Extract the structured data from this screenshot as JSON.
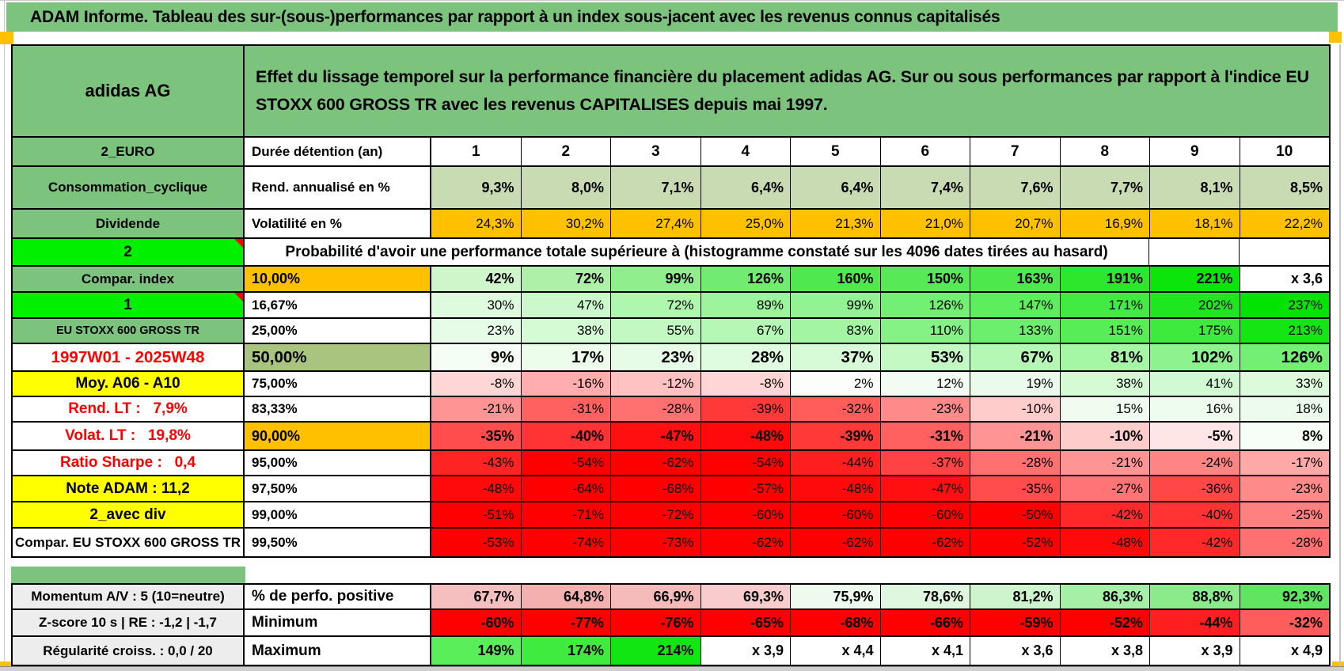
{
  "title": "ADAM Informe. Tableau des sur-(sous-)performances par rapport à un index sous-jacent avec les revenus connus capitalisés",
  "colors": {
    "band_green": "#7CC47D",
    "bright_green": "#00F000",
    "orange": "#FFC000",
    "yellow": "#FFFF00",
    "sage": "#C9DBB3",
    "olive": "#A9C47E",
    "gray_label": "#EDEDED",
    "red_text": "#FF0000",
    "marker_orange": "#FFC000"
  },
  "header": {
    "company": "adidas AG",
    "description": "Effet du lissage temporel sur la performance financière du placement adidas AG. Sur ou sous performances par rapport à l'indice EU STOXX 600 GROSS TR avec les revenus CAPITALISES depuis mai 1997."
  },
  "columns": [
    "1",
    "2",
    "3",
    "4",
    "5",
    "6",
    "7",
    "8",
    "9",
    "10"
  ],
  "rows": [
    {
      "a": "2_EURO",
      "a_class": "bg-green",
      "b": "Durée détention (an)",
      "b_class": "",
      "v_class": "ac bold fs19",
      "cells": [
        {
          "t": "1",
          "bg": "#FFFFFF"
        },
        {
          "t": "2",
          "bg": "#FFFFFF"
        },
        {
          "t": "3",
          "bg": "#FFFFFF"
        },
        {
          "t": "4",
          "bg": "#FFFFFF"
        },
        {
          "t": "5",
          "bg": "#FFFFFF"
        },
        {
          "t": "6",
          "bg": "#FFFFFF"
        },
        {
          "t": "7",
          "bg": "#FFFFFF"
        },
        {
          "t": "8",
          "bg": "#FFFFFF"
        },
        {
          "t": "9",
          "bg": "#FFFFFF"
        },
        {
          "t": "10",
          "bg": "#FFFFFF"
        }
      ]
    },
    {
      "a": "Consommation_cyclique",
      "a_class": "bg-green",
      "b": "Rend. annualisé en %",
      "b_class": "",
      "v_class": "bold fs18",
      "cells": [
        {
          "t": "9,3%",
          "bg": "#C9DBB3"
        },
        {
          "t": "8,0%",
          "bg": "#C9DBB3"
        },
        {
          "t": "7,1%",
          "bg": "#C9DBB3"
        },
        {
          "t": "6,4%",
          "bg": "#C9DBB3"
        },
        {
          "t": "6,4%",
          "bg": "#C9DBB3"
        },
        {
          "t": "7,4%",
          "bg": "#C9DBB3"
        },
        {
          "t": "7,6%",
          "bg": "#C9DBB3"
        },
        {
          "t": "7,7%",
          "bg": "#C9DBB3"
        },
        {
          "t": "8,1%",
          "bg": "#C9DBB3"
        },
        {
          "t": "8,5%",
          "bg": "#C9DBB3"
        }
      ]
    },
    {
      "a": "Dividende",
      "a_class": "bg-green",
      "b": "Volatilité en %",
      "b_class": "",
      "v_class": "normal",
      "cells": [
        {
          "t": "24,3%",
          "bg": "#FFC000"
        },
        {
          "t": "30,2%",
          "bg": "#FFC000"
        },
        {
          "t": "27,4%",
          "bg": "#FFC000"
        },
        {
          "t": "25,0%",
          "bg": "#FFC000"
        },
        {
          "t": "21,3%",
          "bg": "#FFC000"
        },
        {
          "t": "21,0%",
          "bg": "#FFC000"
        },
        {
          "t": "20,7%",
          "bg": "#FFC000"
        },
        {
          "t": "16,9%",
          "bg": "#FFC000"
        },
        {
          "t": "18,1%",
          "bg": "#FFC000"
        },
        {
          "t": "22,2%",
          "bg": "#FFC000"
        }
      ]
    },
    {
      "a": "2",
      "a_class": "bg-bright fs19",
      "a_note": true,
      "merged_text": "Probabilité d'avoir une performance totale supérieure à (histogramme constaté sur les 4096 dates tirées au hasard)",
      "tail_cells": [
        {
          "t": "",
          "bg": "#FFFFFF"
        },
        {
          "t": "",
          "bg": "#FFFFFF"
        }
      ]
    },
    {
      "a": "Compar. index",
      "a_class": "bg-green",
      "b": "10,00%",
      "b_class": "ac bg-orange fs18",
      "v_class": "bold fs18",
      "cells": [
        {
          "t": "42%",
          "bg": "#CFF5CB"
        },
        {
          "t": "72%",
          "bg": "#AFF0A8"
        },
        {
          "t": "99%",
          "bg": "#90EE8C"
        },
        {
          "t": "126%",
          "bg": "#72EC70"
        },
        {
          "t": "160%",
          "bg": "#4FE84E"
        },
        {
          "t": "150%",
          "bg": "#58E956"
        },
        {
          "t": "163%",
          "bg": "#4DE84B"
        },
        {
          "t": "191%",
          "bg": "#2CE72C"
        },
        {
          "t": "221%",
          "bg": "#0BE50B"
        },
        {
          "t": "x 3,6",
          "bg": "#FFFFFF"
        }
      ]
    },
    {
      "a": "1",
      "a_class": "bg-bright fs19",
      "a_note": true,
      "b": "16,67%",
      "b_class": "ac",
      "v_class": "normal",
      "cells": [
        {
          "t": "30%",
          "bg": "#DEFBDE"
        },
        {
          "t": "47%",
          "bg": "#CBF9CB"
        },
        {
          "t": "72%",
          "bg": "#AFF7AF"
        },
        {
          "t": "89%",
          "bg": "#9CF59C"
        },
        {
          "t": "99%",
          "bg": "#91F391"
        },
        {
          "t": "126%",
          "bg": "#73F073"
        },
        {
          "t": "147%",
          "bg": "#5CEE5C"
        },
        {
          "t": "171%",
          "bg": "#41EB41"
        },
        {
          "t": "202%",
          "bg": "#1FE71F"
        },
        {
          "t": "237%",
          "bg": "#00E400"
        }
      ]
    },
    {
      "a": "EU STOXX 600 GROSS TR",
      "a_class": "bg-green fs14",
      "b": "25,00%",
      "b_class": "ac",
      "v_class": "normal",
      "cells": [
        {
          "t": "23%",
          "bg": "#E6FCE6"
        },
        {
          "t": "38%",
          "bg": "#D5FBD5"
        },
        {
          "t": "55%",
          "bg": "#C2F9C2"
        },
        {
          "t": "67%",
          "bg": "#B5F7B5"
        },
        {
          "t": "83%",
          "bg": "#A3F5A3"
        },
        {
          "t": "110%",
          "bg": "#85F285"
        },
        {
          "t": "133%",
          "bg": "#6CEF6C"
        },
        {
          "t": "151%",
          "bg": "#57ED57"
        },
        {
          "t": "175%",
          "bg": "#3DEA3D"
        },
        {
          "t": "213%",
          "bg": "#13E613"
        }
      ]
    },
    {
      "a": "1997W01 - 2025W48",
      "a_class": "txt-red fs20",
      "b": "50,00%",
      "b_class": "ac bg-olive fs20",
      "v_class": "bold fs20",
      "cells": [
        {
          "t": "9%",
          "bg": "#F5FEF5"
        },
        {
          "t": "17%",
          "bg": "#ECFDEC"
        },
        {
          "t": "23%",
          "bg": "#E6FCE6"
        },
        {
          "t": "28%",
          "bg": "#E0FCE0"
        },
        {
          "t": "37%",
          "bg": "#D6FBD6"
        },
        {
          "t": "53%",
          "bg": "#C4F9C4"
        },
        {
          "t": "67%",
          "bg": "#B5F7B5"
        },
        {
          "t": "81%",
          "bg": "#A5F6A5"
        },
        {
          "t": "102%",
          "bg": "#8EF38E"
        },
        {
          "t": "126%",
          "bg": "#73F073"
        }
      ]
    },
    {
      "a": "Moy. A06 - A10",
      "a_class": "bg-yellow ar fs19",
      "b": "75,00%",
      "b_class": "ac",
      "v_class": "normal",
      "cells": [
        {
          "t": "-8%",
          "bg": "#FFD6D6"
        },
        {
          "t": "-16%",
          "bg": "#FFADAD"
        },
        {
          "t": "-12%",
          "bg": "#FFC2C2"
        },
        {
          "t": "-8%",
          "bg": "#FFD6D6"
        },
        {
          "t": "2%",
          "bg": "#FBFEFB"
        },
        {
          "t": "12%",
          "bg": "#F2FCF2"
        },
        {
          "t": "19%",
          "bg": "#EBFBEB"
        },
        {
          "t": "38%",
          "bg": "#D5FBD5"
        },
        {
          "t": "41%",
          "bg": "#D2FAD2"
        },
        {
          "t": "33%",
          "bg": "#DBFBDB"
        }
      ]
    },
    {
      "a": "Rend. LT :   7,9%",
      "a_class": "txt-red ar fs19 pre",
      "b": "83,33%",
      "b_class": "ac",
      "v_class": "normal",
      "cells": [
        {
          "t": "-21%",
          "bg": "#FF9494"
        },
        {
          "t": "-31%",
          "bg": "#FF6161"
        },
        {
          "t": "-28%",
          "bg": "#FF7070"
        },
        {
          "t": "-39%",
          "bg": "#FF3838"
        },
        {
          "t": "-32%",
          "bg": "#FF5C5C"
        },
        {
          "t": "-23%",
          "bg": "#FF8A8A"
        },
        {
          "t": "-10%",
          "bg": "#FFCCCC"
        },
        {
          "t": "15%",
          "bg": "#EFFCEF"
        },
        {
          "t": "16%",
          "bg": "#EEFCEE"
        },
        {
          "t": "18%",
          "bg": "#ECFBEC"
        }
      ]
    },
    {
      "a": "Volat. LT :   19,8%",
      "a_class": "txt-red ar fs19 pre",
      "b": "90,00%",
      "b_class": "ac bg-orange fs18",
      "v_class": "bold fs18",
      "cells": [
        {
          "t": "-35%",
          "bg": "#FF4D4D"
        },
        {
          "t": "-40%",
          "bg": "#FF3333"
        },
        {
          "t": "-47%",
          "bg": "#FF0F0F"
        },
        {
          "t": "-48%",
          "bg": "#FF0A0A"
        },
        {
          "t": "-39%",
          "bg": "#FF3838"
        },
        {
          "t": "-31%",
          "bg": "#FF6161"
        },
        {
          "t": "-21%",
          "bg": "#FF9494"
        },
        {
          "t": "-10%",
          "bg": "#FFCCCC"
        },
        {
          "t": "-5%",
          "bg": "#FFE6E6"
        },
        {
          "t": "8%",
          "bg": "#F7FDF7"
        }
      ]
    },
    {
      "a": "Ratio Sharpe :   0,4",
      "a_class": "txt-red ar fs19 pre",
      "b": "95,00%",
      "b_class": "ac",
      "v_class": "normal",
      "cells": [
        {
          "t": "-43%",
          "bg": "#FF2424"
        },
        {
          "t": "-54%",
          "bg": "#FF0000"
        },
        {
          "t": "-62%",
          "bg": "#FF0000"
        },
        {
          "t": "-54%",
          "bg": "#FF0000"
        },
        {
          "t": "-44%",
          "bg": "#FF1F1F"
        },
        {
          "t": "-37%",
          "bg": "#FF4242"
        },
        {
          "t": "-28%",
          "bg": "#FF7070"
        },
        {
          "t": "-21%",
          "bg": "#FF9494"
        },
        {
          "t": "-24%",
          "bg": "#FF8585"
        },
        {
          "t": "-17%",
          "bg": "#FFA8A8"
        }
      ]
    },
    {
      "a": "Note ADAM : 11,2",
      "a_class": "bg-yellow al fs19",
      "b": "97,50%",
      "b_class": "ac",
      "v_class": "normal",
      "cells": [
        {
          "t": "-48%",
          "bg": "#FF0A0A"
        },
        {
          "t": "-64%",
          "bg": "#FF0000"
        },
        {
          "t": "-68%",
          "bg": "#FF0000"
        },
        {
          "t": "-57%",
          "bg": "#FF0000"
        },
        {
          "t": "-48%",
          "bg": "#FF0A0A"
        },
        {
          "t": "-47%",
          "bg": "#FF0F0F"
        },
        {
          "t": "-35%",
          "bg": "#FF4D4D"
        },
        {
          "t": "-27%",
          "bg": "#FF7575"
        },
        {
          "t": "-36%",
          "bg": "#FF4747"
        },
        {
          "t": "-23%",
          "bg": "#FF8A8A"
        }
      ]
    },
    {
      "a": "2_avec div",
      "a_class": "bg-yellow al fs19",
      "b": "99,00%",
      "b_class": "ac",
      "v_class": "normal",
      "cells": [
        {
          "t": "-51%",
          "bg": "#FF0000"
        },
        {
          "t": "-71%",
          "bg": "#FF0000"
        },
        {
          "t": "-72%",
          "bg": "#FF0000"
        },
        {
          "t": "-60%",
          "bg": "#FF0000"
        },
        {
          "t": "-60%",
          "bg": "#FF0000"
        },
        {
          "t": "-60%",
          "bg": "#FF0000"
        },
        {
          "t": "-50%",
          "bg": "#FF0000"
        },
        {
          "t": "-42%",
          "bg": "#FF2929"
        },
        {
          "t": "-40%",
          "bg": "#FF3333"
        },
        {
          "t": "-25%",
          "bg": "#FF8080"
        }
      ]
    },
    {
      "a": "Compar. EU STOXX 600 GROSS TR",
      "a_class": "clip",
      "b": "99,50%",
      "b_class": "ac",
      "v_class": "normal",
      "cells": [
        {
          "t": "-53%",
          "bg": "#FF0000"
        },
        {
          "t": "-74%",
          "bg": "#FF0000"
        },
        {
          "t": "-73%",
          "bg": "#FF0000"
        },
        {
          "t": "-62%",
          "bg": "#FF0000"
        },
        {
          "t": "-62%",
          "bg": "#FF0000"
        },
        {
          "t": "-62%",
          "bg": "#FF0000"
        },
        {
          "t": "-52%",
          "bg": "#FF0000"
        },
        {
          "t": "-48%",
          "bg": "#FF0A0A"
        },
        {
          "t": "-42%",
          "bg": "#FF2929"
        },
        {
          "t": "-28%",
          "bg": "#FF7070"
        }
      ]
    }
  ],
  "bottom_rows": [
    {
      "a": "Momentum A/V : 5 (10=neutre)",
      "a_class": "bg-gray al",
      "b": "% de perfo. positive",
      "b_class": "fs19",
      "v_class": "bold fs18",
      "cells": [
        {
          "t": "67,7%",
          "bg": "#F6BFBF"
        },
        {
          "t": "64,8%",
          "bg": "#F4AFAF"
        },
        {
          "t": "66,9%",
          "bg": "#F5BABA"
        },
        {
          "t": "69,3%",
          "bg": "#F8CCCC"
        },
        {
          "t": "75,9%",
          "bg": "#EFFAEF"
        },
        {
          "t": "78,6%",
          "bg": "#DFF7DF"
        },
        {
          "t": "81,2%",
          "bg": "#CDF4CD"
        },
        {
          "t": "86,3%",
          "bg": "#A6EFA6"
        },
        {
          "t": "88,8%",
          "bg": "#8BEB8B"
        },
        {
          "t": "92,3%",
          "bg": "#5FE55F"
        }
      ]
    },
    {
      "a": "Z-score 10 s | RE : -1,2 | -1,7",
      "a_class": "bg-gray al pre",
      "b": "Minimum",
      "b_class": "fs19",
      "v_class": "bold fs18",
      "cells": [
        {
          "t": "-60%",
          "bg": "#FF0000"
        },
        {
          "t": "-77%",
          "bg": "#FF0000"
        },
        {
          "t": "-76%",
          "bg": "#FF0000"
        },
        {
          "t": "-65%",
          "bg": "#FF0000"
        },
        {
          "t": "-68%",
          "bg": "#FF0000"
        },
        {
          "t": "-66%",
          "bg": "#FF0000"
        },
        {
          "t": "-59%",
          "bg": "#FF0000"
        },
        {
          "t": "-52%",
          "bg": "#FF0000"
        },
        {
          "t": "-44%",
          "bg": "#FF1F1F"
        },
        {
          "t": "-32%",
          "bg": "#FF5C5C"
        }
      ]
    },
    {
      "a": "Régularité croiss. : 0,0 / 20",
      "a_class": "bg-gray al",
      "b": "Maximum",
      "b_class": "fs19",
      "v_class": "bold fs18",
      "cells": [
        {
          "t": "149%",
          "bg": "#5AEE5A"
        },
        {
          "t": "174%",
          "bg": "#3EEB3E"
        },
        {
          "t": "214%",
          "bg": "#12E612"
        },
        {
          "t": "x 3,9",
          "bg": "#FFFFFF"
        },
        {
          "t": "x 4,4",
          "bg": "#FFFFFF"
        },
        {
          "t": "x 4,1",
          "bg": "#FFFFFF"
        },
        {
          "t": "x 3,6",
          "bg": "#FFFFFF"
        },
        {
          "t": "x 3,8",
          "bg": "#FFFFFF"
        },
        {
          "t": "x 3,9",
          "bg": "#FFFFFF"
        },
        {
          "t": "x 4,9",
          "bg": "#FFFFFF"
        }
      ]
    }
  ]
}
